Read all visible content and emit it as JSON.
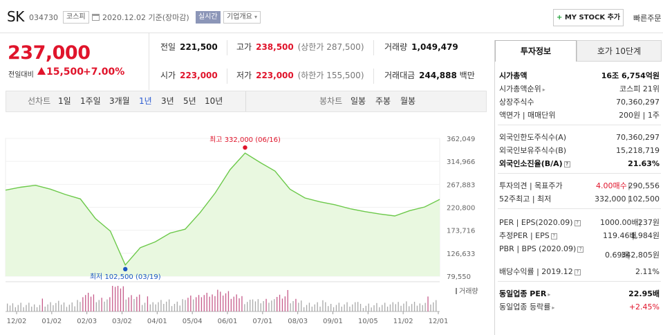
{
  "header": {
    "stock_name": "SK",
    "stock_code": "034730",
    "market": "코스피",
    "date": "2020.12.02 기준(장마감)",
    "realtime": "실시간",
    "company_overview": "기업개요",
    "my_stock_plus": "+",
    "my_stock": "MY STOCK 추가",
    "quick_order": "빠른주문"
  },
  "price": {
    "current": "237,000",
    "change_label": "전일대비",
    "change": "15,500",
    "percent": "+7.00%"
  },
  "quote": {
    "prev_label": "전일",
    "prev": "221,500",
    "high_label": "고가",
    "high": "238,500",
    "upper_limit": "(상한가 287,500)",
    "volume_label": "거래량",
    "volume": "1,049,479",
    "open_label": "시가",
    "open": "223,000",
    "low_label": "저가",
    "low": "223,000",
    "lower_limit": "(하한가 155,500)",
    "amount_label": "거래대금",
    "amount": "244,888",
    "amount_unit": "백만"
  },
  "period_bar": {
    "line_label": "선차트",
    "periods": [
      "1일",
      "1주일",
      "3개월",
      "1년",
      "3년",
      "5년",
      "10년"
    ],
    "active": "1년",
    "candle_label": "봉차트",
    "candles": [
      "일봉",
      "주봉",
      "월봉"
    ]
  },
  "chart_data": {
    "type": "area",
    "y_ticks": [
      "362,049",
      "314,966",
      "267,883",
      "220,800",
      "173,716",
      "126,633",
      "79,550"
    ],
    "ylim": [
      79550,
      362049
    ],
    "x_ticks": [
      "12/02",
      "01/02",
      "02/03",
      "03/02",
      "04/01",
      "05/04",
      "06/01",
      "07/01",
      "08/03",
      "09/01",
      "10/05",
      "11/02",
      "12/01"
    ],
    "high_label": "최고 332,000 (06/16)",
    "low_label": "최저 102,500 (03/19)",
    "volume_label": "거래량",
    "colors": {
      "line": "#6cc94a",
      "fill": "#e9f8e0",
      "high": "#e0142b",
      "low": "#1a56c4",
      "volume": "#a8a8a8",
      "volume_hi": "#c65b8a"
    },
    "price_series": [
      [
        "12/02",
        256000
      ],
      [
        "12/16",
        262000
      ],
      [
        "01/02",
        266000
      ],
      [
        "01/16",
        258000
      ],
      [
        "02/03",
        247000
      ],
      [
        "02/17",
        238000
      ],
      [
        "03/02",
        198000
      ],
      [
        "03/09",
        172000
      ],
      [
        "03/19",
        102500
      ],
      [
        "03/26",
        138000
      ],
      [
        "04/01",
        150000
      ],
      [
        "04/16",
        168000
      ],
      [
        "05/04",
        176000
      ],
      [
        "05/18",
        210000
      ],
      [
        "06/01",
        250000
      ],
      [
        "06/10",
        298000
      ],
      [
        "06/16",
        332000
      ],
      [
        "06/23",
        313000
      ],
      [
        "07/01",
        295000
      ],
      [
        "07/16",
        258000
      ],
      [
        "08/03",
        240000
      ],
      [
        "08/18",
        232000
      ],
      [
        "09/01",
        226000
      ],
      [
        "09/16",
        218000
      ],
      [
        "10/05",
        212000
      ],
      [
        "10/19",
        207000
      ],
      [
        "11/02",
        203000
      ],
      [
        "11/16",
        214000
      ],
      [
        "12/01",
        221500
      ],
      [
        "12/02",
        237000
      ]
    ]
  },
  "right_panel": {
    "tab_active": "투자정보",
    "tab_other": "호가 10단계",
    "market_cap_label": "시가총액",
    "market_cap": "16조 6,754억원",
    "cap_rank_label": "시가총액순위",
    "cap_rank": "코스피 21위",
    "shares_label": "상장주식수",
    "shares": "70,360,297",
    "par_label": "액면가 | 매매단위",
    "par": "200원 | 1주",
    "foreign_limit_label": "외국인한도주식수(A)",
    "foreign_limit": "70,360,297",
    "foreign_hold_label": "외국인보유주식수(B)",
    "foreign_hold": "15,218,719",
    "foreign_ratio_label": "외국인소진율(B/A)",
    "foreign_ratio": "21.63%",
    "opinion_label": "투자의견 | 목표주가",
    "opinion": "4.00매수",
    "target": "290,556",
    "w52_label": "52주최고 | 최저",
    "w52_high": "332,000",
    "w52_low": "102,500",
    "per_label": "PER | EPS(2020.09)",
    "per": "1000.00배",
    "eps": "237원",
    "est_per_label": "추정PER | EPS",
    "est_per": "119.46배",
    "est_eps": "1,984원",
    "pbr_label": "PBR | BPS (2020.09)",
    "pbr": "0.69배",
    "bps": "342,805원",
    "div_label": "배당수익률 | 2019.12",
    "div": "2.11%",
    "ind_per_label": "동일업종 PER",
    "ind_per": "22.95배",
    "ind_rate_label": "동일업종 등락률",
    "ind_rate": "+2.45%"
  }
}
